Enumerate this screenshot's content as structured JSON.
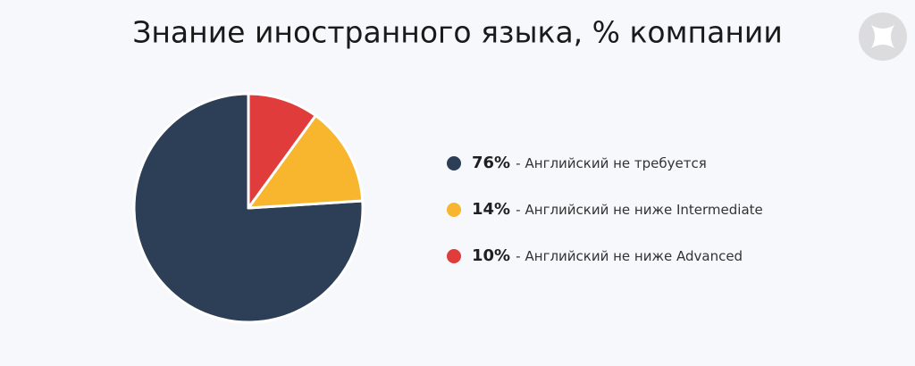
{
  "chart_data": {
    "type": "pie",
    "title": "Знание иностранного языка, % компании",
    "categories": [
      "Английский не требуется",
      "Английский не ниже Intermediate",
      "Английский не ниже Advanced"
    ],
    "values": [
      76,
      14,
      10
    ],
    "value_labels": [
      "76%",
      "14%",
      "10%"
    ],
    "label_separator": "-",
    "colors": [
      "#2d3e57",
      "#f8b52e",
      "#e03c3c"
    ],
    "direction": "counterclockwise",
    "legend": "right"
  }
}
